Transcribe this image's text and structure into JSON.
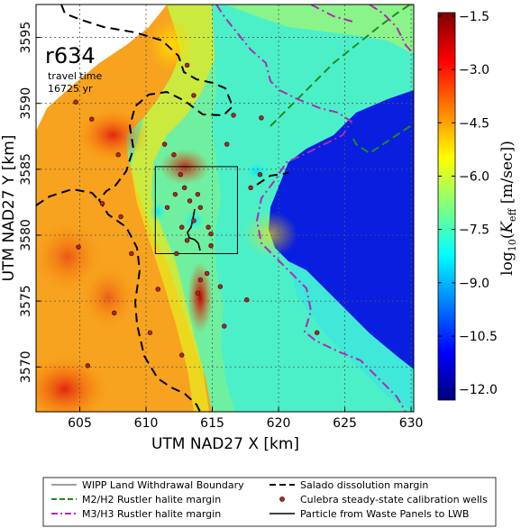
{
  "chart_data": {
    "type": "heatmap",
    "run_label": "r634",
    "annotation_line1": "travel time",
    "annotation_line2": "16725 yr",
    "xlabel": "UTM NAD27 X [km]",
    "ylabel": "UTM NAD27 Y [km]",
    "xlim": [
      601.7,
      630.2
    ],
    "ylim": [
      3566.6,
      3597.5
    ],
    "x_ticks": [
      "605",
      "610",
      "615",
      "620",
      "625",
      "630"
    ],
    "x_tick_values": [
      605,
      610,
      615,
      620,
      625,
      630
    ],
    "y_ticks": [
      "3570",
      "3575",
      "3580",
      "3585",
      "3590",
      "3595"
    ],
    "y_tick_values": [
      3570,
      3575,
      3580,
      3585,
      3590,
      3595
    ],
    "grid": true,
    "colorbar": {
      "label_prefix": "log",
      "label_sub": "10",
      "label_open": "(",
      "label_k": "K",
      "label_k_sub": "eff",
      "label_units": " [m/sec])",
      "range": [
        -12.3,
        -1.4
      ],
      "ticks": [
        "−1.5",
        "−3.0",
        "−4.5",
        "−6.0",
        "−7.5",
        "−9.0",
        "−10.5",
        "−12.0"
      ],
      "tick_values": [
        -1.5,
        -3.0,
        -4.5,
        -6.0,
        -7.5,
        -9.0,
        -10.5,
        -12.0
      ],
      "colormap": [
        "#00007f",
        "#0000ff",
        "#0080ff",
        "#00ffff",
        "#80ff80",
        "#ffff00",
        "#ff8000",
        "#ff0000",
        "#7f0000"
      ]
    },
    "field_regions": [
      {
        "name": "west-high-zone",
        "value": -3.8
      },
      {
        "name": "central-green-zone",
        "value": -5.8
      },
      {
        "name": "east-low-zone",
        "value": -11.7
      },
      {
        "name": "east-plateau",
        "value": -6.9
      }
    ],
    "wipp_boundary": {
      "x0": 610.7,
      "x1": 616.9,
      "y0": 3578.6,
      "y1": 3585.2
    },
    "wells": [
      [
        604.7,
        3590.1
      ],
      [
        605.9,
        3588.8
      ],
      [
        607.9,
        3586.1
      ],
      [
        608.1,
        3581.4
      ],
      [
        606.7,
        3582.4
      ],
      [
        604.9,
        3579.1
      ],
      [
        608.9,
        3578.6
      ],
      [
        607.6,
        3574.1
      ],
      [
        605.6,
        3570.1
      ],
      [
        610.9,
        3575.9
      ],
      [
        611.4,
        3586.9
      ],
      [
        612.1,
        3586.1
      ],
      [
        612.6,
        3584.6
      ],
      [
        612.9,
        3583.6
      ],
      [
        612.2,
        3583.1
      ],
      [
        613.3,
        3582.6
      ],
      [
        613.9,
        3583.1
      ],
      [
        614.1,
        3582.1
      ],
      [
        613.6,
        3581.1
      ],
      [
        614.7,
        3580.6
      ],
      [
        614.9,
        3580.1
      ],
      [
        612.7,
        3580.6
      ],
      [
        613.1,
        3579.6
      ],
      [
        612.3,
        3578.6
      ],
      [
        614.9,
        3579.2
      ],
      [
        614.6,
        3577.1
      ],
      [
        614.1,
        3576.6
      ],
      [
        613.9,
        3575.6
      ],
      [
        615.6,
        3576.1
      ],
      [
        617.6,
        3575.1
      ],
      [
        618.6,
        3584.6
      ],
      [
        617.9,
        3583.6
      ],
      [
        616.6,
        3589.1
      ],
      [
        618.7,
        3588.9
      ],
      [
        613.6,
        3590.6
      ],
      [
        613.1,
        3592.9
      ],
      [
        612.7,
        3570.9
      ],
      [
        610.3,
        3572.6
      ],
      [
        615.9,
        3573.1
      ],
      [
        622.9,
        3572.6
      ],
      [
        616.1,
        3586.9
      ],
      [
        611.6,
        3582.1
      ]
    ],
    "legend": [
      {
        "label": "WIPP Land Withdrawal Boundary",
        "style": "thin-solid",
        "color": "#000000"
      },
      {
        "label": "Salado dissolution margin",
        "style": "thick-dashed",
        "color": "#000000"
      },
      {
        "label": "M2/H2 Rustler halite margin",
        "style": "dashed",
        "color": "#1f8a1f"
      },
      {
        "label": "Culebra steady-state calibration wells",
        "style": "dot",
        "color": "#a52a2a"
      },
      {
        "label": "M3/H3 Rustler halite margin",
        "style": "dash-dot",
        "color": "#b02ab0"
      },
      {
        "label": "Particle from Waste Panels to LWB",
        "style": "solid",
        "color": "#000000"
      }
    ]
  }
}
